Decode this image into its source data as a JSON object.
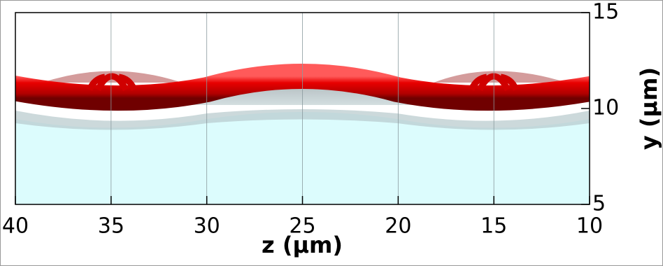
{
  "chart_data": {
    "type": "render3d",
    "xlabel": "z (μm)",
    "ylabel": "y (μm)",
    "xlim": [
      40,
      10
    ],
    "xticks": [
      40,
      35,
      30,
      25,
      20,
      15,
      10
    ],
    "ylim": [
      5,
      15
    ],
    "yticks": [
      5,
      10,
      15
    ],
    "grid": "x"
  }
}
